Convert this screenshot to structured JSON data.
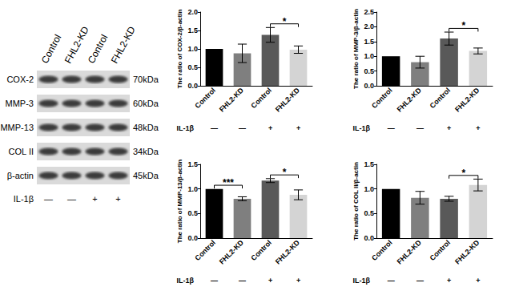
{
  "blot": {
    "lanes": [
      "Control",
      "FHL2-KD",
      "Control",
      "FHL2-KD"
    ],
    "rows": [
      {
        "protein": "COX-2",
        "size": "70kDa"
      },
      {
        "protein": "MMP-3",
        "size": "60kDa"
      },
      {
        "protein": "MMP-13",
        "size": "48kDa"
      },
      {
        "protein": "COL II",
        "size": "34kDa"
      },
      {
        "protein": "β-actin",
        "size": "45kDa"
      }
    ],
    "condition": {
      "label": "IL-1β",
      "values": [
        "—",
        "—",
        "+",
        "+"
      ]
    }
  },
  "chart_data": [
    {
      "type": "bar",
      "y_label": "The ratio of COX-2/β-actin",
      "categories": [
        "Control",
        "FHL2-KD",
        "Control",
        "FHL2-KD"
      ],
      "condition": {
        "label": "IL-1β",
        "values": [
          "—",
          "—",
          "+",
          "+"
        ]
      },
      "values": [
        1.0,
        0.88,
        1.38,
        0.98
      ],
      "errors": [
        null,
        0.25,
        0.2,
        0.1
      ],
      "colors": [
        "#000000",
        "#7f7f7f",
        "#595959",
        "#d4d4d4"
      ],
      "ylim": [
        0,
        2
      ],
      "yticks": [
        {
          "value": 0,
          "label": "0.0"
        },
        {
          "value": 0.5,
          "label": "0.5"
        },
        {
          "value": 1,
          "label": "1.0"
        },
        {
          "value": 1.5,
          "label": "1.5"
        },
        {
          "value": 2,
          "label": "2.0"
        }
      ],
      "grid": false,
      "significance": [
        {
          "from": 2,
          "to": 3,
          "label": "*"
        }
      ]
    },
    {
      "type": "bar",
      "y_label": "The ratio of MMP-3/β-actin",
      "categories": [
        "Control",
        "FHL2-KD",
        "Control",
        "FHL2-KD"
      ],
      "condition": {
        "label": "IL-1β",
        "values": [
          "—",
          "—",
          "+",
          "+"
        ]
      },
      "values": [
        1.0,
        0.8,
        1.6,
        1.18
      ],
      "errors": [
        null,
        0.2,
        0.22,
        0.1
      ],
      "colors": [
        "#000000",
        "#7f7f7f",
        "#595959",
        "#d4d4d4"
      ],
      "ylim": [
        0,
        2.5
      ],
      "yticks": [
        {
          "value": 0,
          "label": "0.0"
        },
        {
          "value": 0.5,
          "label": "0.5"
        },
        {
          "value": 1,
          "label": "1.0"
        },
        {
          "value": 1.5,
          "label": "1.5"
        },
        {
          "value": 2,
          "label": "2.0"
        },
        {
          "value": 2.5,
          "label": "2.5"
        }
      ],
      "grid": false,
      "significance": [
        {
          "from": 2,
          "to": 3,
          "label": "*"
        }
      ]
    },
    {
      "type": "bar",
      "y_label": "The ratio of MMP-13/β-actin",
      "categories": [
        "Control",
        "FHL2-KD",
        "Control",
        "FHL2-KD"
      ],
      "condition": {
        "label": "IL-1β",
        "values": [
          "—",
          "—",
          "+",
          "+"
        ]
      },
      "values": [
        1.0,
        0.8,
        1.17,
        0.88
      ],
      "errors": [
        null,
        0.04,
        0.04,
        0.1
      ],
      "colors": [
        "#000000",
        "#7f7f7f",
        "#595959",
        "#d4d4d4"
      ],
      "ylim": [
        0,
        1.5
      ],
      "yticks": [
        {
          "value": 0,
          "label": "0.0"
        },
        {
          "value": 0.5,
          "label": "0.5"
        },
        {
          "value": 1,
          "label": "1.0"
        },
        {
          "value": 1.5,
          "label": "1.5"
        }
      ],
      "grid": false,
      "significance": [
        {
          "from": 0,
          "to": 1,
          "label": "***"
        },
        {
          "from": 2,
          "to": 3,
          "label": "*"
        }
      ]
    },
    {
      "type": "bar",
      "y_label": "The ratio of COL II/β-actin",
      "categories": [
        "Control",
        "FHL2-KD",
        "Control",
        "FHL2-KD"
      ],
      "condition": {
        "label": "IL-1β",
        "values": [
          "—",
          "—",
          "+",
          "+"
        ]
      },
      "values": [
        1.0,
        0.82,
        0.8,
        1.08
      ],
      "errors": [
        null,
        0.13,
        0.05,
        0.12
      ],
      "colors": [
        "#000000",
        "#7f7f7f",
        "#595959",
        "#d4d4d4"
      ],
      "ylim": [
        0,
        1.5
      ],
      "yticks": [
        {
          "value": 0,
          "label": "0.0"
        },
        {
          "value": 0.5,
          "label": "0.5"
        },
        {
          "value": 1,
          "label": "1.0"
        },
        {
          "value": 1.5,
          "label": "1.5"
        }
      ],
      "grid": false,
      "significance": [
        {
          "from": 2,
          "to": 3,
          "label": "*"
        }
      ]
    }
  ]
}
